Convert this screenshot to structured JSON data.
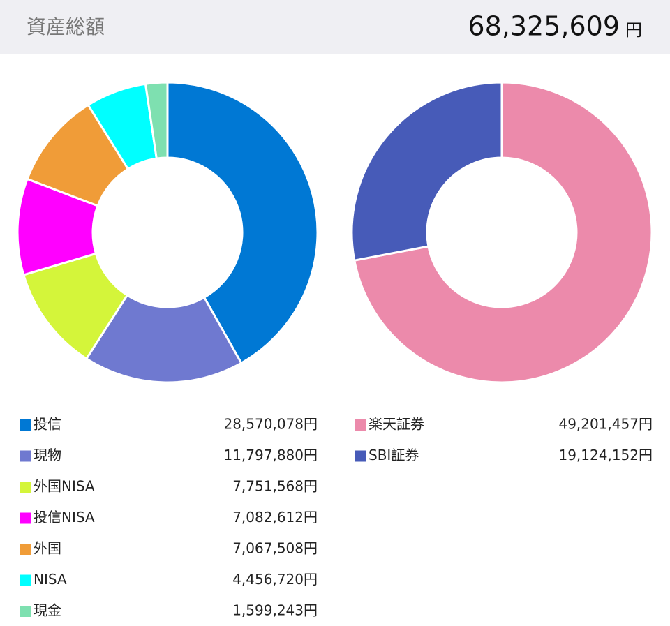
{
  "header": {
    "title": "資産総額",
    "total": "68,325,609",
    "unit": "円"
  },
  "chart_data": [
    {
      "type": "donut",
      "categories": [
        "投信",
        "現物",
        "外国NISA",
        "投信NISA",
        "外国",
        "NISA",
        "現金"
      ],
      "values": [
        28570078,
        11797880,
        7751568,
        7082612,
        7067508,
        4456720,
        1599243
      ],
      "value_labels": [
        "28,570,078円",
        "11,797,880円",
        "7,751,568円",
        "7,082,612円",
        "7,067,508円",
        "4,456,720円",
        "1,599,243円"
      ],
      "colors": [
        "#0078d4",
        "#6f79d0",
        "#d4f53a",
        "#ff00ff",
        "#f09c38",
        "#00ffff",
        "#7ee0b0"
      ]
    },
    {
      "type": "donut",
      "categories": [
        "楽天証券",
        "SBI証券"
      ],
      "values": [
        49201457,
        19124152
      ],
      "value_labels": [
        "49,201,457円",
        "19,124,152円"
      ],
      "colors": [
        "#ec8aab",
        "#475bb8"
      ]
    }
  ]
}
